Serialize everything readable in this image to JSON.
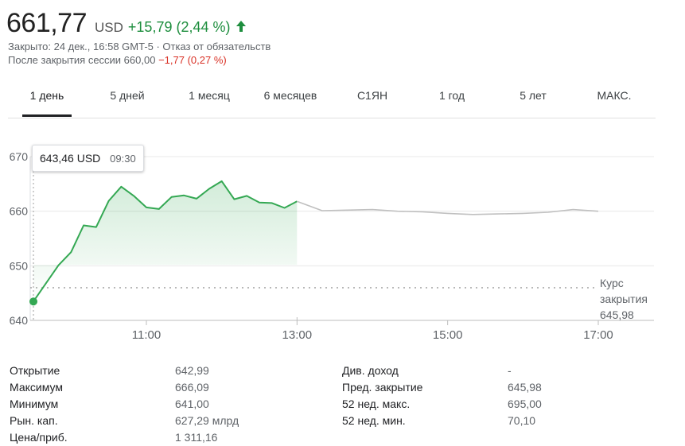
{
  "quote": {
    "price": "661,77",
    "currency": "USD",
    "change": "+15,79 (2,44 %)",
    "closed_line": "Закрыто: 24 дек., 16:58 GMT-5 · Отказ от обязательств",
    "after_hours_label": "После закрытия сессии 660,00",
    "after_hours_change": "−1,77 (0,27 %)",
    "up_color": "#1e8e3e",
    "down_color": "#d93025"
  },
  "tabs": [
    {
      "label": "1 день",
      "active": true
    },
    {
      "label": "5 дней"
    },
    {
      "label": "1 месяц"
    },
    {
      "label": "6 месяцев"
    },
    {
      "label": "С1ЯН"
    },
    {
      "label": "1 год"
    },
    {
      "label": "5 лет"
    },
    {
      "label": "МАКС."
    }
  ],
  "tooltip": {
    "value": "643,46 USD",
    "time": "09:30"
  },
  "chart_data": {
    "type": "line",
    "ylim": [
      640,
      670
    ],
    "yticks": [
      "640",
      "650",
      "660",
      "670"
    ],
    "xticks": [
      "11:00",
      "13:00",
      "15:00",
      "17:00"
    ],
    "prev_close": {
      "label_line1": "Курс",
      "label_line2": "закрытия",
      "value": "645,98",
      "y": 645.98
    },
    "series": [
      {
        "session": "regular",
        "color": "#34a853",
        "x": [
          "09:30",
          "09:40",
          "09:50",
          "10:00",
          "10:10",
          "10:20",
          "10:30",
          "10:40",
          "10:50",
          "11:00",
          "11:10",
          "11:20",
          "11:30",
          "11:40",
          "11:50",
          "12:00",
          "12:10",
          "12:20",
          "12:30",
          "12:40",
          "12:50",
          "13:00"
        ],
        "y": [
          643.46,
          646.8,
          650.1,
          652.5,
          657.4,
          657.1,
          661.9,
          664.5,
          662.8,
          660.7,
          660.4,
          662.6,
          662.9,
          662.3,
          664.1,
          665.5,
          662.2,
          662.8,
          661.6,
          661.5,
          660.6,
          661.8
        ]
      },
      {
        "session": "after_hours",
        "color": "#c0c0c0",
        "x": [
          "13:00",
          "13:20",
          "13:40",
          "14:00",
          "14:20",
          "14:40",
          "15:00",
          "15:20",
          "15:40",
          "16:00",
          "16:20",
          "16:40",
          "17:00"
        ],
        "y": [
          661.8,
          660.1,
          660.2,
          660.3,
          660.0,
          659.9,
          659.6,
          659.4,
          659.5,
          659.6,
          659.8,
          660.3,
          660.0
        ]
      }
    ]
  },
  "stats": {
    "left": [
      {
        "label": "Открытие",
        "value": "642,99"
      },
      {
        "label": "Максимум",
        "value": "666,09"
      },
      {
        "label": "Минимум",
        "value": "641,00"
      },
      {
        "label": "Рын. кап.",
        "value": "627,29 млрд"
      },
      {
        "label": "Цена/приб.",
        "value": "1 311,16"
      }
    ],
    "right": [
      {
        "label": "Див. доход",
        "value": "-"
      },
      {
        "label": "Пред. закрытие",
        "value": "645,98"
      },
      {
        "label": "52 нед. макс.",
        "value": "695,00"
      },
      {
        "label": "52 нед. мин.",
        "value": "70,10"
      }
    ]
  }
}
